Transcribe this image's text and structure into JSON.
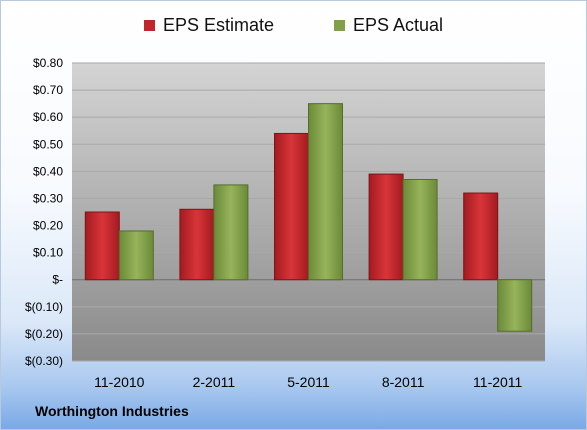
{
  "legend": {
    "estimate_label": "EPS Estimate",
    "actual_label": "EPS Actual"
  },
  "footer": {
    "company": "Worthington Industries"
  },
  "colors": {
    "estimate": "#c0262b",
    "actual": "#82a04a",
    "plot_top": "#d2d2d2",
    "plot_bottom": "#8c8c8c"
  },
  "chart_data": {
    "type": "bar",
    "categories": [
      "11-2010",
      "2-2011",
      "5-2011",
      "8-2011",
      "11-2011"
    ],
    "series": [
      {
        "name": "EPS Estimate",
        "values": [
          0.25,
          0.26,
          0.54,
          0.39,
          0.32
        ]
      },
      {
        "name": "EPS Actual",
        "values": [
          0.18,
          0.35,
          0.65,
          0.37,
          -0.19
        ]
      }
    ],
    "ylim": [
      -0.3,
      0.8
    ],
    "yticks": [
      0.8,
      0.7,
      0.6,
      0.5,
      0.4,
      0.3,
      0.2,
      0.1,
      0,
      -0.1,
      -0.2,
      -0.3
    ],
    "ytick_labels": [
      "$0.80",
      "$0.70",
      "$0.60",
      "$0.50",
      "$0.40",
      "$0.30",
      "$0.20",
      "$0.10",
      "$-",
      "$(0.10)",
      "$(0.20)",
      "$(0.30)"
    ],
    "legend_position": "top-center",
    "grid": true
  }
}
